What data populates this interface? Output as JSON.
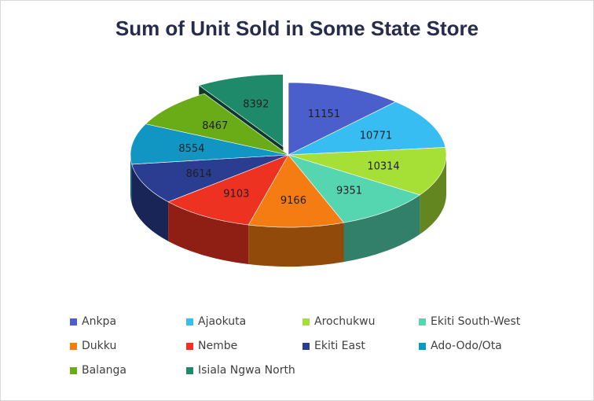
{
  "chart_data": {
    "type": "pie",
    "title": "Sum of Unit Sold in Some State Store",
    "categories": [
      "Ankpa",
      "Ajaokuta",
      "Arochukwu",
      "Ekiti South-West",
      "Dukku",
      "Nembe",
      "Ekiti East",
      "Ado-Odo/Ota",
      "Balanga",
      "Isiala Ngwa North"
    ],
    "values": [
      11151,
      10771,
      10314,
      9351,
      9166,
      9103,
      8614,
      8554,
      8467,
      8392
    ],
    "colors": [
      "#4a5fcc",
      "#38bdf3",
      "#a6e036",
      "#55d6b0",
      "#f47c13",
      "#ee3222",
      "#2a3d91",
      "#1196c4",
      "#6aac18",
      "#1f8a69"
    ],
    "exploded": "Isiala Ngwa North",
    "legend_position": "bottom",
    "data_labels": true
  }
}
